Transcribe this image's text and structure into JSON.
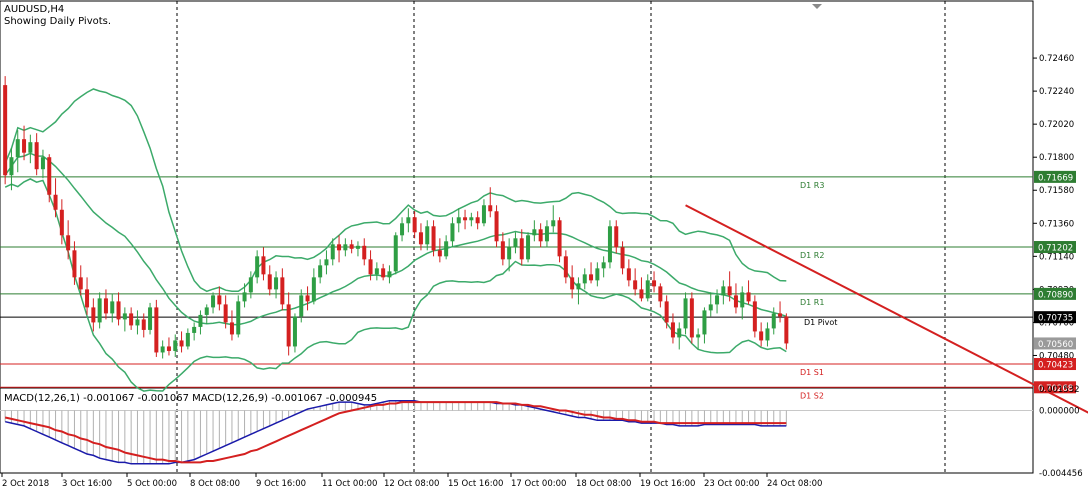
{
  "chart_title": "AUDUSD,H4",
  "indicator_note": "Showing Daily Pivots.",
  "macd_label": "MACD(12,26,1) -0.001067 -0.001067 MACD(12,26,9) -0.001067 -0.000945",
  "pivot_label": "D1 Pivot",
  "colors": {
    "background": "#ffffff",
    "bull_candle": "#2e9e44",
    "bear_candle": "#d42020",
    "bands": "#3caa6a",
    "resistance": "#2e7d32",
    "support": "#d42020",
    "trendline": "#d42020",
    "macd_line": "#1a1aaa",
    "signal_line": "#d42020",
    "histogram": "#b0b0b0"
  },
  "chart_data": {
    "type": "candlestick",
    "symbol": "AUDUSD",
    "timeframe": "H4",
    "y_range": [
      0.7027,
      0.7284
    ],
    "price_ticks": [
      "0.72460",
      "0.72240",
      "0.72020",
      "0.71800",
      "0.71580",
      "0.71360",
      "0.71140",
      "0.70920",
      "0.70700",
      "0.70480"
    ],
    "x_labels": [
      "2 Oct 2018",
      "3 Oct 16:00",
      "5 Oct 00:00",
      "8 Oct 08:00",
      "9 Oct 16:00",
      "11 Oct 00:00",
      "12 Oct 08:00",
      "15 Oct 16:00",
      "17 Oct 00:00",
      "18 Oct 08:00",
      "19 Oct 16:00",
      "23 Oct 00:00",
      "24 Oct 08:00"
    ],
    "levels": [
      {
        "label": "D1 R3",
        "value": 0.71669,
        "tag": "0.71669",
        "kind": "resistance"
      },
      {
        "label": "D1 R2",
        "value": 0.71202,
        "tag": "0.71202",
        "kind": "resistance"
      },
      {
        "label": "D1 R1",
        "value": 0.7089,
        "tag": "0.70890",
        "kind": "resistance"
      },
      {
        "label": "D1 S1",
        "value": 0.70423,
        "tag": "0.70423",
        "kind": "support"
      },
      {
        "label": "D1 S2",
        "value": 0.70268,
        "tag": "0.70268",
        "kind": "support"
      }
    ],
    "current_price": {
      "value": 0.70735,
      "tag": "0.70735"
    },
    "ask_price": {
      "value": 0.7056,
      "tag": "0.70560"
    },
    "trendline": {
      "from": {
        "bar": 108,
        "price": 0.7148
      },
      "to": {
        "bar": 172,
        "price": 0.70098
      }
    },
    "candles": [
      [
        0.7228,
        0.7234,
        0.7162,
        0.7168
      ],
      [
        0.7168,
        0.7186,
        0.7158,
        0.718
      ],
      [
        0.718,
        0.7198,
        0.717,
        0.7192
      ],
      [
        0.7192,
        0.7201,
        0.7178,
        0.7183
      ],
      [
        0.7183,
        0.7195,
        0.7176,
        0.719
      ],
      [
        0.719,
        0.7196,
        0.7168,
        0.7172
      ],
      [
        0.7172,
        0.7185,
        0.7166,
        0.718
      ],
      [
        0.718,
        0.7182,
        0.715,
        0.7155
      ],
      [
        0.7155,
        0.7166,
        0.714,
        0.7145
      ],
      [
        0.7145,
        0.7152,
        0.7122,
        0.7128
      ],
      [
        0.7128,
        0.7138,
        0.7112,
        0.7118
      ],
      [
        0.7118,
        0.7124,
        0.7095,
        0.71
      ],
      [
        0.71,
        0.7108,
        0.7088,
        0.7092
      ],
      [
        0.7092,
        0.71,
        0.7075,
        0.708
      ],
      [
        0.708,
        0.7086,
        0.7064,
        0.707
      ],
      [
        0.707,
        0.709,
        0.7066,
        0.7086
      ],
      [
        0.7086,
        0.7092,
        0.7072,
        0.7076
      ],
      [
        0.7076,
        0.7089,
        0.707,
        0.7084
      ],
      [
        0.7084,
        0.709,
        0.7068,
        0.7072
      ],
      [
        0.7072,
        0.708,
        0.7064,
        0.7076
      ],
      [
        0.7076,
        0.708,
        0.7065,
        0.7068
      ],
      [
        0.7068,
        0.7078,
        0.7062,
        0.7072
      ],
      [
        0.7072,
        0.7076,
        0.706,
        0.7065
      ],
      [
        0.7065,
        0.7083,
        0.7062,
        0.708
      ],
      [
        0.708,
        0.7085,
        0.7047,
        0.705
      ],
      [
        0.705,
        0.7058,
        0.7046,
        0.7054
      ],
      [
        0.7054,
        0.706,
        0.7048,
        0.7051
      ],
      [
        0.7051,
        0.7062,
        0.7047,
        0.7058
      ],
      [
        0.7058,
        0.7064,
        0.705,
        0.7054
      ],
      [
        0.7054,
        0.7066,
        0.7052,
        0.7063
      ],
      [
        0.7063,
        0.707,
        0.7058,
        0.7067
      ],
      [
        0.7067,
        0.7078,
        0.7062,
        0.7075
      ],
      [
        0.7075,
        0.7082,
        0.7069,
        0.708
      ],
      [
        0.708,
        0.709,
        0.7076,
        0.7088
      ],
      [
        0.7088,
        0.7094,
        0.7078,
        0.7082
      ],
      [
        0.7082,
        0.7088,
        0.7066,
        0.707
      ],
      [
        0.707,
        0.7078,
        0.7058,
        0.7062
      ],
      [
        0.7062,
        0.7088,
        0.706,
        0.7084
      ],
      [
        0.7084,
        0.7096,
        0.708,
        0.709
      ],
      [
        0.709,
        0.7104,
        0.7086,
        0.71
      ],
      [
        0.71,
        0.7118,
        0.7096,
        0.7114
      ],
      [
        0.7114,
        0.712,
        0.7098,
        0.7102
      ],
      [
        0.7102,
        0.7108,
        0.7088,
        0.7092
      ],
      [
        0.7092,
        0.7104,
        0.7086,
        0.71
      ],
      [
        0.71,
        0.7106,
        0.7078,
        0.7082
      ],
      [
        0.7082,
        0.709,
        0.7048,
        0.7054
      ],
      [
        0.7054,
        0.7076,
        0.705,
        0.7074
      ],
      [
        0.7074,
        0.7092,
        0.707,
        0.7088
      ],
      [
        0.7088,
        0.7094,
        0.7078,
        0.7084
      ],
      [
        0.7084,
        0.7106,
        0.7082,
        0.71
      ],
      [
        0.71,
        0.7112,
        0.7096,
        0.7108
      ],
      [
        0.7108,
        0.7118,
        0.7102,
        0.7112
      ],
      [
        0.7112,
        0.7126,
        0.7108,
        0.7122
      ],
      [
        0.7122,
        0.7128,
        0.711,
        0.7118
      ],
      [
        0.7118,
        0.7126,
        0.7114,
        0.7122
      ],
      [
        0.7122,
        0.7125,
        0.7116,
        0.7119
      ],
      [
        0.7119,
        0.7124,
        0.7114,
        0.7121
      ],
      [
        0.7121,
        0.7126,
        0.7108,
        0.7112
      ],
      [
        0.7112,
        0.7118,
        0.7098,
        0.7102
      ],
      [
        0.7102,
        0.711,
        0.7098,
        0.7106
      ],
      [
        0.7106,
        0.7109,
        0.7098,
        0.71
      ],
      [
        0.71,
        0.7108,
        0.7096,
        0.7104
      ],
      [
        0.7104,
        0.713,
        0.7102,
        0.7128
      ],
      [
        0.7128,
        0.714,
        0.7124,
        0.7136
      ],
      [
        0.7136,
        0.7146,
        0.713,
        0.714
      ],
      [
        0.714,
        0.7144,
        0.7126,
        0.713
      ],
      [
        0.713,
        0.7136,
        0.7118,
        0.7122
      ],
      [
        0.7122,
        0.7138,
        0.7118,
        0.7134
      ],
      [
        0.7134,
        0.7138,
        0.7114,
        0.7118
      ],
      [
        0.7118,
        0.7126,
        0.711,
        0.7114
      ],
      [
        0.7114,
        0.7128,
        0.7112,
        0.7124
      ],
      [
        0.7124,
        0.714,
        0.712,
        0.7136
      ],
      [
        0.7136,
        0.7146,
        0.713,
        0.714
      ],
      [
        0.714,
        0.7145,
        0.7132,
        0.7138
      ],
      [
        0.7138,
        0.7143,
        0.7134,
        0.714
      ],
      [
        0.714,
        0.7144,
        0.7132,
        0.7136
      ],
      [
        0.7136,
        0.7152,
        0.7134,
        0.7148
      ],
      [
        0.7148,
        0.716,
        0.714,
        0.7144
      ],
      [
        0.7144,
        0.7148,
        0.712,
        0.7124
      ],
      [
        0.7124,
        0.713,
        0.7108,
        0.7112
      ],
      [
        0.7112,
        0.7126,
        0.7104,
        0.712
      ],
      [
        0.712,
        0.713,
        0.7116,
        0.7126
      ],
      [
        0.7126,
        0.7132,
        0.7108,
        0.7112
      ],
      [
        0.7112,
        0.713,
        0.711,
        0.7128
      ],
      [
        0.7128,
        0.7138,
        0.7124,
        0.7132
      ],
      [
        0.7132,
        0.7136,
        0.712,
        0.7124
      ],
      [
        0.7124,
        0.7138,
        0.712,
        0.7134
      ],
      [
        0.7134,
        0.7148,
        0.713,
        0.7138
      ],
      [
        0.7138,
        0.714,
        0.711,
        0.7114
      ],
      [
        0.7114,
        0.7118,
        0.7096,
        0.71
      ],
      [
        0.71,
        0.7108,
        0.7086,
        0.7092
      ],
      [
        0.7092,
        0.71,
        0.7082,
        0.7096
      ],
      [
        0.7096,
        0.7106,
        0.7092,
        0.7102
      ],
      [
        0.7102,
        0.711,
        0.7096,
        0.7098
      ],
      [
        0.7098,
        0.711,
        0.7094,
        0.7106
      ],
      [
        0.7106,
        0.7114,
        0.71,
        0.711
      ],
      [
        0.711,
        0.7138,
        0.7106,
        0.7134
      ],
      [
        0.7134,
        0.7138,
        0.7116,
        0.712
      ],
      [
        0.712,
        0.7124,
        0.7102,
        0.7106
      ],
      [
        0.7106,
        0.7112,
        0.7094,
        0.7098
      ],
      [
        0.7098,
        0.7106,
        0.7088,
        0.7092
      ],
      [
        0.7092,
        0.71,
        0.7084,
        0.7086
      ],
      [
        0.7086,
        0.7102,
        0.7084,
        0.7098
      ],
      [
        0.7098,
        0.7104,
        0.709,
        0.7094
      ],
      [
        0.7094,
        0.7096,
        0.708,
        0.7084
      ],
      [
        0.7084,
        0.7088,
        0.7066,
        0.707
      ],
      [
        0.707,
        0.7076,
        0.7056,
        0.706
      ],
      [
        0.706,
        0.707,
        0.7052,
        0.7066
      ],
      [
        0.7066,
        0.709,
        0.7062,
        0.7086
      ],
      [
        0.7086,
        0.709,
        0.7056,
        0.706
      ],
      [
        0.706,
        0.7066,
        0.7052,
        0.7062
      ],
      [
        0.7062,
        0.708,
        0.7056,
        0.7078
      ],
      [
        0.7078,
        0.709,
        0.7074,
        0.7082
      ],
      [
        0.7082,
        0.7092,
        0.7076,
        0.7088
      ],
      [
        0.7088,
        0.7098,
        0.7082,
        0.7094
      ],
      [
        0.7094,
        0.7104,
        0.7084,
        0.7088
      ],
      [
        0.7088,
        0.7096,
        0.7076,
        0.708
      ],
      [
        0.708,
        0.7094,
        0.7072,
        0.709
      ],
      [
        0.709,
        0.7098,
        0.7082,
        0.7084
      ],
      [
        0.7084,
        0.7088,
        0.706,
        0.7064
      ],
      [
        0.7064,
        0.707,
        0.7054,
        0.7058
      ],
      [
        0.7058,
        0.707,
        0.7054,
        0.7066
      ],
      [
        0.7066,
        0.708,
        0.7062,
        0.7076
      ],
      [
        0.7076,
        0.7084,
        0.707,
        0.7074
      ],
      [
        0.7074,
        0.7076,
        0.7052,
        0.7056
      ]
    ],
    "macd_axis": {
      "ticks": [
        "0.001532",
        "0.000000",
        "-0.004456"
      ],
      "range": [
        -0.004456,
        0.001532
      ]
    },
    "macd": [
      -0.0008,
      -0.0009,
      -0.001,
      -0.0011,
      -0.0013,
      -0.0015,
      -0.0017,
      -0.0019,
      -0.0021,
      -0.0023,
      -0.0025,
      -0.0027,
      -0.0029,
      -0.0031,
      -0.0032,
      -0.0034,
      -0.0035,
      -0.0036,
      -0.0037,
      -0.0037,
      -0.0038,
      -0.0038,
      -0.0038,
      -0.0038,
      -0.0038,
      -0.0038,
      -0.0038,
      -0.0037,
      -0.0037,
      -0.0036,
      -0.0035,
      -0.0033,
      -0.0031,
      -0.0029,
      -0.0027,
      -0.0025,
      -0.0023,
      -0.0021,
      -0.0019,
      -0.0017,
      -0.0015,
      -0.0013,
      -0.0011,
      -0.0009,
      -0.0007,
      -0.0005,
      -0.0003,
      -0.0001,
      0.0001,
      0.0002,
      0.0003,
      0.0004,
      0.0005,
      0.0006,
      0.0006,
      0.0006,
      0.0005,
      0.0004,
      0.0004,
      0.0005,
      0.0006,
      0.0007,
      0.0007,
      0.0007,
      0.0007,
      0.0007,
      0.0006,
      0.0006,
      0.0006,
      0.0006,
      0.0006,
      0.0006,
      0.0006,
      0.0006,
      0.0006,
      0.0006,
      0.0006,
      0.0006,
      0.0005,
      0.0005,
      0.0005,
      0.0004,
      0.0004,
      0.0003,
      0.0002,
      0.0001,
      0.0,
      -0.0001,
      -0.0002,
      -0.0003,
      -0.0004,
      -0.0005,
      -0.0005,
      -0.0006,
      -0.0007,
      -0.0007,
      -0.0007,
      -0.0007,
      -0.0007,
      -0.0008,
      -0.0008,
      -0.0009,
      -0.0009,
      -0.0009,
      -0.0009,
      -0.001,
      -0.001,
      -0.0011,
      -0.0011,
      -0.0011,
      -0.0011,
      -0.001,
      -0.001,
      -0.001,
      -0.001,
      -0.001,
      -0.001,
      -0.001,
      -0.001,
      -0.001,
      -0.0011,
      -0.0011,
      -0.0011,
      -0.0011,
      -0.0011
    ],
    "signal": [
      -0.0005,
      -0.0006,
      -0.0007,
      -0.0008,
      -0.0009,
      -0.001,
      -0.0011,
      -0.0012,
      -0.0014,
      -0.0015,
      -0.0017,
      -0.0018,
      -0.002,
      -0.0021,
      -0.0023,
      -0.0024,
      -0.0026,
      -0.0027,
      -0.0028,
      -0.003,
      -0.0031,
      -0.0032,
      -0.0033,
      -0.0034,
      -0.0035,
      -0.0035,
      -0.0036,
      -0.0036,
      -0.0037,
      -0.0037,
      -0.0037,
      -0.0037,
      -0.0036,
      -0.0036,
      -0.0035,
      -0.0034,
      -0.0033,
      -0.0032,
      -0.0031,
      -0.0029,
      -0.0028,
      -0.0026,
      -0.0024,
      -0.0022,
      -0.002,
      -0.0018,
      -0.0016,
      -0.0014,
      -0.0012,
      -0.001,
      -0.0008,
      -0.0006,
      -0.0004,
      -0.0002,
      -0.0001,
      0.0,
      0.0001,
      0.0002,
      0.0003,
      0.0004,
      0.0004,
      0.0005,
      0.0005,
      0.0006,
      0.0006,
      0.0006,
      0.0006,
      0.0006,
      0.0006,
      0.0006,
      0.0006,
      0.0006,
      0.0006,
      0.0006,
      0.0006,
      0.0006,
      0.0006,
      0.0006,
      0.0006,
      0.0005,
      0.0005,
      0.0005,
      0.0004,
      0.0004,
      0.0003,
      0.0003,
      0.0002,
      0.0001,
      0.0,
      0.0,
      -0.0001,
      -0.0002,
      -0.0003,
      -0.0003,
      -0.0004,
      -0.0005,
      -0.0005,
      -0.0006,
      -0.0006,
      -0.0007,
      -0.0007,
      -0.0008,
      -0.0008,
      -0.0008,
      -0.0009,
      -0.0009,
      -0.0009,
      -0.0009,
      -0.0009,
      -0.0009,
      -0.0009,
      -0.0009,
      -0.0009,
      -0.0009,
      -0.0009,
      -0.0009,
      -0.0009,
      -0.0009,
      -0.0009,
      -0.0009,
      -0.0009,
      -0.0009,
      -0.0009,
      -0.0009,
      -0.0009
    ]
  }
}
